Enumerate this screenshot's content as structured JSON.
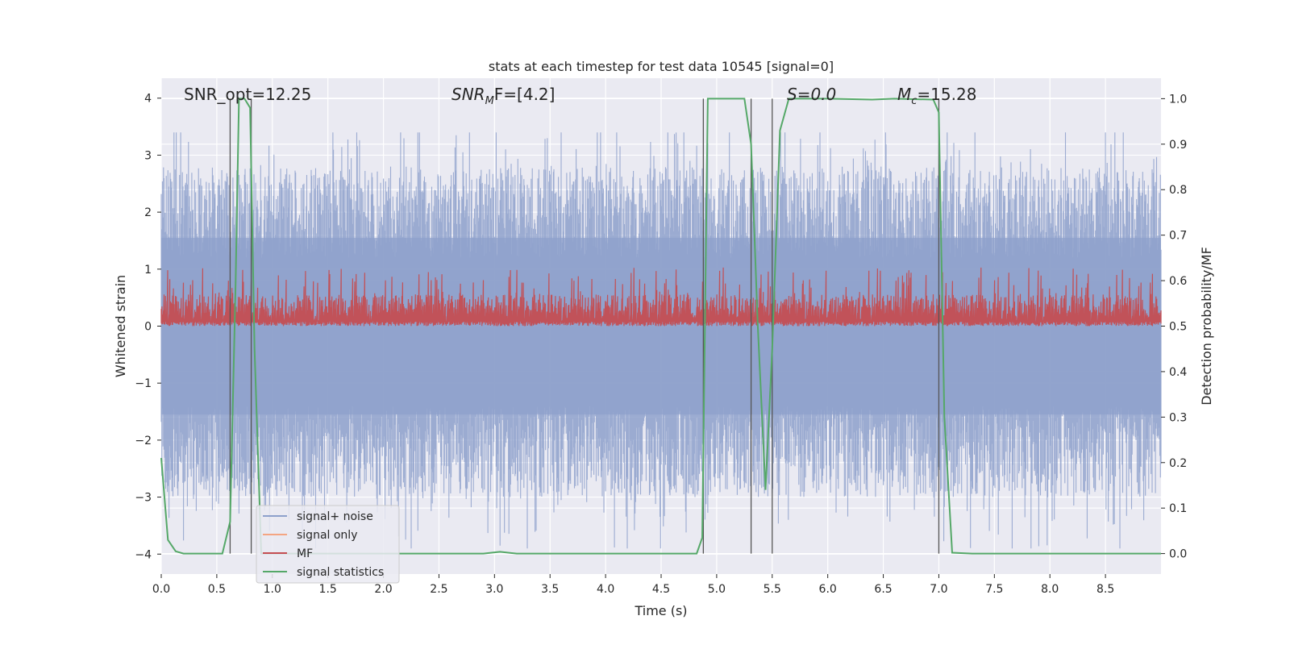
{
  "chart_data": {
    "type": "line",
    "title": "stats at each timestep for test data 10545 [signal=0]",
    "xlabel": "Time (s)",
    "ylabel_left": "Whitened strain",
    "ylabel_right": "Detection probability/MF",
    "xlim": [
      0.0,
      9.0
    ],
    "ylim_left": [
      -4.35,
      4.35
    ],
    "ylim_right": [
      -0.045,
      1.045
    ],
    "x_ticks": [
      0.0,
      0.5,
      1.0,
      1.5,
      2.0,
      2.5,
      3.0,
      3.5,
      4.0,
      4.5,
      5.0,
      5.5,
      6.0,
      6.5,
      7.0,
      7.5,
      8.0,
      8.5
    ],
    "x_tick_labels": [
      "0.0",
      "0.5",
      "1.0",
      "1.5",
      "2.0",
      "2.5",
      "3.0",
      "3.5",
      "4.0",
      "4.5",
      "5.0",
      "5.5",
      "6.0",
      "6.5",
      "7.0",
      "7.5",
      "8.0",
      "8.5"
    ],
    "y_left_ticks": [
      -4,
      -3,
      -2,
      -1,
      0,
      1,
      2,
      3,
      4
    ],
    "y_left_tick_labels": [
      "−4",
      "−3",
      "−2",
      "−1",
      "0",
      "1",
      "2",
      "3",
      "4"
    ],
    "y_right_ticks": [
      0.0,
      0.1,
      0.2,
      0.3,
      0.4,
      0.5,
      0.6,
      0.7,
      0.8,
      0.9,
      1.0
    ],
    "y_right_tick_labels": [
      "0.0",
      "0.1",
      "0.2",
      "0.3",
      "0.4",
      "0.5",
      "0.6",
      "0.7",
      "0.8",
      "0.9",
      "1.0"
    ],
    "grid": true,
    "annotations": [
      {
        "text": "SNR_opt=12.25"
      },
      {
        "text": "SNR",
        "sub": "M",
        "suffix": "F=[4.2]"
      },
      {
        "text": "S=0.0"
      },
      {
        "text": "M",
        "sub": "c",
        "suffix": "=15.28"
      }
    ],
    "vertical_lines_x": [
      0.62,
      0.81,
      4.88,
      5.31,
      5.5,
      7.0
    ],
    "series": [
      {
        "name": "signal+ noise",
        "color": "#8da0cb",
        "axis": "left",
        "kind": "noise",
        "amplitude_range": [
          -3.9,
          3.4
        ]
      },
      {
        "name": "signal only",
        "color": "#f4a582",
        "axis": "left",
        "kind": "flat",
        "values": []
      },
      {
        "name": "MF",
        "color": "#c44e52",
        "axis": "right",
        "kind": "noise",
        "range": [
          0.5,
          0.61
        ]
      },
      {
        "name": "signal statistics",
        "color": "#55a868",
        "axis": "right",
        "x": [
          0.0,
          0.06,
          0.13,
          0.2,
          0.3,
          0.4,
          0.55,
          0.62,
          0.67,
          0.7,
          0.75,
          0.8,
          0.84,
          0.9,
          1.0,
          2.0,
          2.9,
          3.05,
          3.2,
          4.0,
          4.4,
          4.82,
          4.87,
          4.92,
          5.0,
          5.1,
          5.25,
          5.31,
          5.37,
          5.44,
          5.5,
          5.57,
          5.65,
          6.0,
          6.4,
          6.6,
          6.95,
          7.0,
          7.05,
          7.12,
          7.3,
          8.0,
          9.0
        ],
        "y": [
          0.21,
          0.03,
          0.005,
          0.0,
          0.0,
          0.0,
          0.0,
          0.07,
          0.6,
          1.0,
          1.0,
          0.98,
          0.45,
          0.0,
          0.0,
          0.0,
          0.0,
          0.004,
          0.0,
          0.0,
          0.0,
          0.0,
          0.035,
          1.0,
          1.0,
          1.0,
          1.0,
          0.9,
          0.5,
          0.14,
          0.45,
          0.93,
          1.0,
          1.0,
          0.998,
          1.0,
          0.998,
          0.97,
          0.3,
          0.002,
          0.0,
          0.0,
          0.0
        ]
      }
    ],
    "legend_position": "lower-left"
  }
}
